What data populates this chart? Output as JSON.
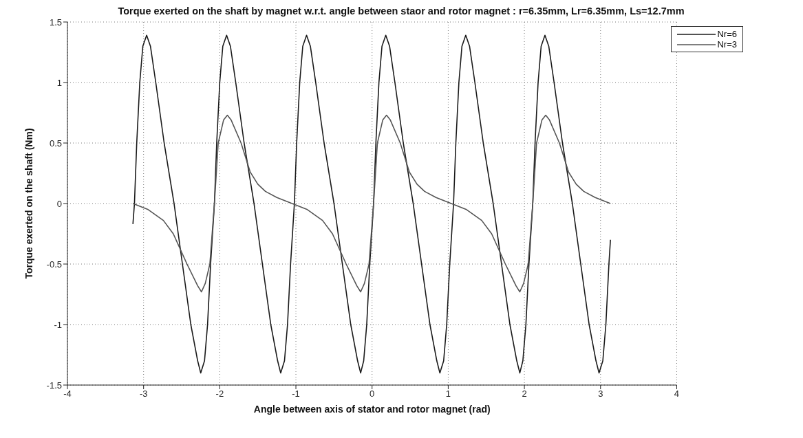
{
  "chart_data": {
    "type": "line",
    "title": "Torque exerted on the shaft by magnet w.r.t. angle between staor and rotor magnet : r=6.35mm, Lr=6.35mm, Ls=12.7mm",
    "xlabel": "Angle between axis of stator and rotor magnet (rad)",
    "ylabel": "Torque exerted on the shaft (Nm)",
    "xlim": [
      -4,
      4
    ],
    "ylim": [
      -1.5,
      1.5
    ],
    "xticks": [
      -4,
      -3,
      -2,
      -1,
      0,
      1,
      2,
      3,
      4
    ],
    "yticks": [
      -1.5,
      -1,
      -0.5,
      0,
      0.5,
      1,
      1.5
    ],
    "grid": true,
    "legend": "top right",
    "marker": "none",
    "line_style": "solid",
    "series": [
      {
        "name": "Nr=6",
        "color": "#1a1a1a",
        "x": [
          -3.14,
          -3.12,
          -3.09,
          -3.05,
          -3.01,
          -2.96,
          -2.91,
          -2.84,
          -2.73,
          -2.6,
          -2.49,
          -2.38,
          -2.29,
          -2.25,
          -2.2,
          -2.16,
          -2.12,
          -2.07,
          -2.04,
          -2,
          -1.96,
          -1.91,
          -1.86,
          -1.79,
          -1.68,
          -1.55,
          -1.44,
          -1.33,
          -1.24,
          -1.2,
          -1.15,
          -1.11,
          -1.07,
          -1.02,
          -0.99,
          -0.95,
          -0.91,
          -0.86,
          -0.81,
          -0.74,
          -0.63,
          -0.5,
          -0.39,
          -0.28,
          -0.19,
          -0.15,
          -0.11,
          -0.07,
          -0.03,
          0.02,
          0.05,
          0.09,
          0.13,
          0.18,
          0.23,
          0.3,
          0.41,
          0.54,
          0.65,
          0.76,
          0.85,
          0.89,
          0.94,
          0.98,
          1.02,
          1.07,
          1.1,
          1.14,
          1.18,
          1.23,
          1.28,
          1.35,
          1.46,
          1.59,
          1.7,
          1.81,
          1.9,
          1.94,
          1.98,
          2.02,
          2.06,
          2.11,
          2.14,
          2.18,
          2.22,
          2.27,
          2.32,
          2.39,
          2.5,
          2.63,
          2.74,
          2.85,
          2.94,
          2.98,
          3.03,
          3.07,
          3.11,
          3.13
        ],
        "values": [
          -0.17,
          0,
          0.5,
          1,
          1.3,
          1.39,
          1.3,
          1,
          0.5,
          0,
          -0.5,
          -1,
          -1.3,
          -1.4,
          -1.3,
          -1,
          -0.5,
          0,
          0.5,
          1,
          1.3,
          1.39,
          1.3,
          1,
          0.5,
          0,
          -0.5,
          -1,
          -1.3,
          -1.4,
          -1.3,
          -1,
          -0.5,
          0,
          0.5,
          1,
          1.3,
          1.39,
          1.3,
          1,
          0.5,
          0,
          -0.5,
          -1,
          -1.3,
          -1.4,
          -1.3,
          -1,
          -0.5,
          0,
          0.5,
          1,
          1.3,
          1.39,
          1.3,
          1,
          0.5,
          0,
          -0.5,
          -1,
          -1.3,
          -1.4,
          -1.3,
          -1,
          -0.5,
          0,
          0.5,
          1,
          1.3,
          1.39,
          1.3,
          1,
          0.5,
          0,
          -0.5,
          -1,
          -1.3,
          -1.4,
          -1.3,
          -1,
          -0.5,
          0,
          0.5,
          1,
          1.3,
          1.39,
          1.3,
          1,
          0.5,
          0,
          -0.5,
          -1,
          -1.3,
          -1.4,
          -1.3,
          -1,
          -0.5,
          -0.3
        ]
      },
      {
        "name": "Nr=3",
        "color": "#555555",
        "x": [
          -3.14,
          -2.94,
          -2.74,
          -2.61,
          -2.43,
          -2.29,
          -2.24,
          -2.19,
          -2.13,
          -2.07,
          -2.02,
          -1.95,
          -1.9,
          -1.85,
          -1.72,
          -1.6,
          -1.5,
          -1.4,
          -1.25,
          -1.05,
          -0.85,
          -0.65,
          -0.52,
          -0.34,
          -0.2,
          -0.15,
          -0.1,
          -0.04,
          0.02,
          0.07,
          0.14,
          0.19,
          0.24,
          0.37,
          0.49,
          0.59,
          0.69,
          0.84,
          1.04,
          1.24,
          1.44,
          1.57,
          1.75,
          1.89,
          1.94,
          1.99,
          2.05,
          2.11,
          2.16,
          2.23,
          2.28,
          2.33,
          2.46,
          2.58,
          2.68,
          2.78,
          2.93,
          3.13
        ],
        "values": [
          0,
          -0.05,
          -0.14,
          -0.25,
          -0.5,
          -0.68,
          -0.73,
          -0.66,
          -0.5,
          0,
          0.5,
          0.69,
          0.73,
          0.69,
          0.5,
          0.26,
          0.16,
          0.1,
          0.05,
          0,
          -0.05,
          -0.14,
          -0.25,
          -0.5,
          -0.68,
          -0.73,
          -0.66,
          -0.5,
          0,
          0.5,
          0.69,
          0.73,
          0.69,
          0.5,
          0.26,
          0.16,
          0.1,
          0.05,
          0,
          -0.05,
          -0.14,
          -0.25,
          -0.5,
          -0.68,
          -0.73,
          -0.66,
          -0.5,
          0,
          0.5,
          0.69,
          0.73,
          0.69,
          0.5,
          0.26,
          0.16,
          0.1,
          0.05,
          0
        ]
      }
    ]
  }
}
